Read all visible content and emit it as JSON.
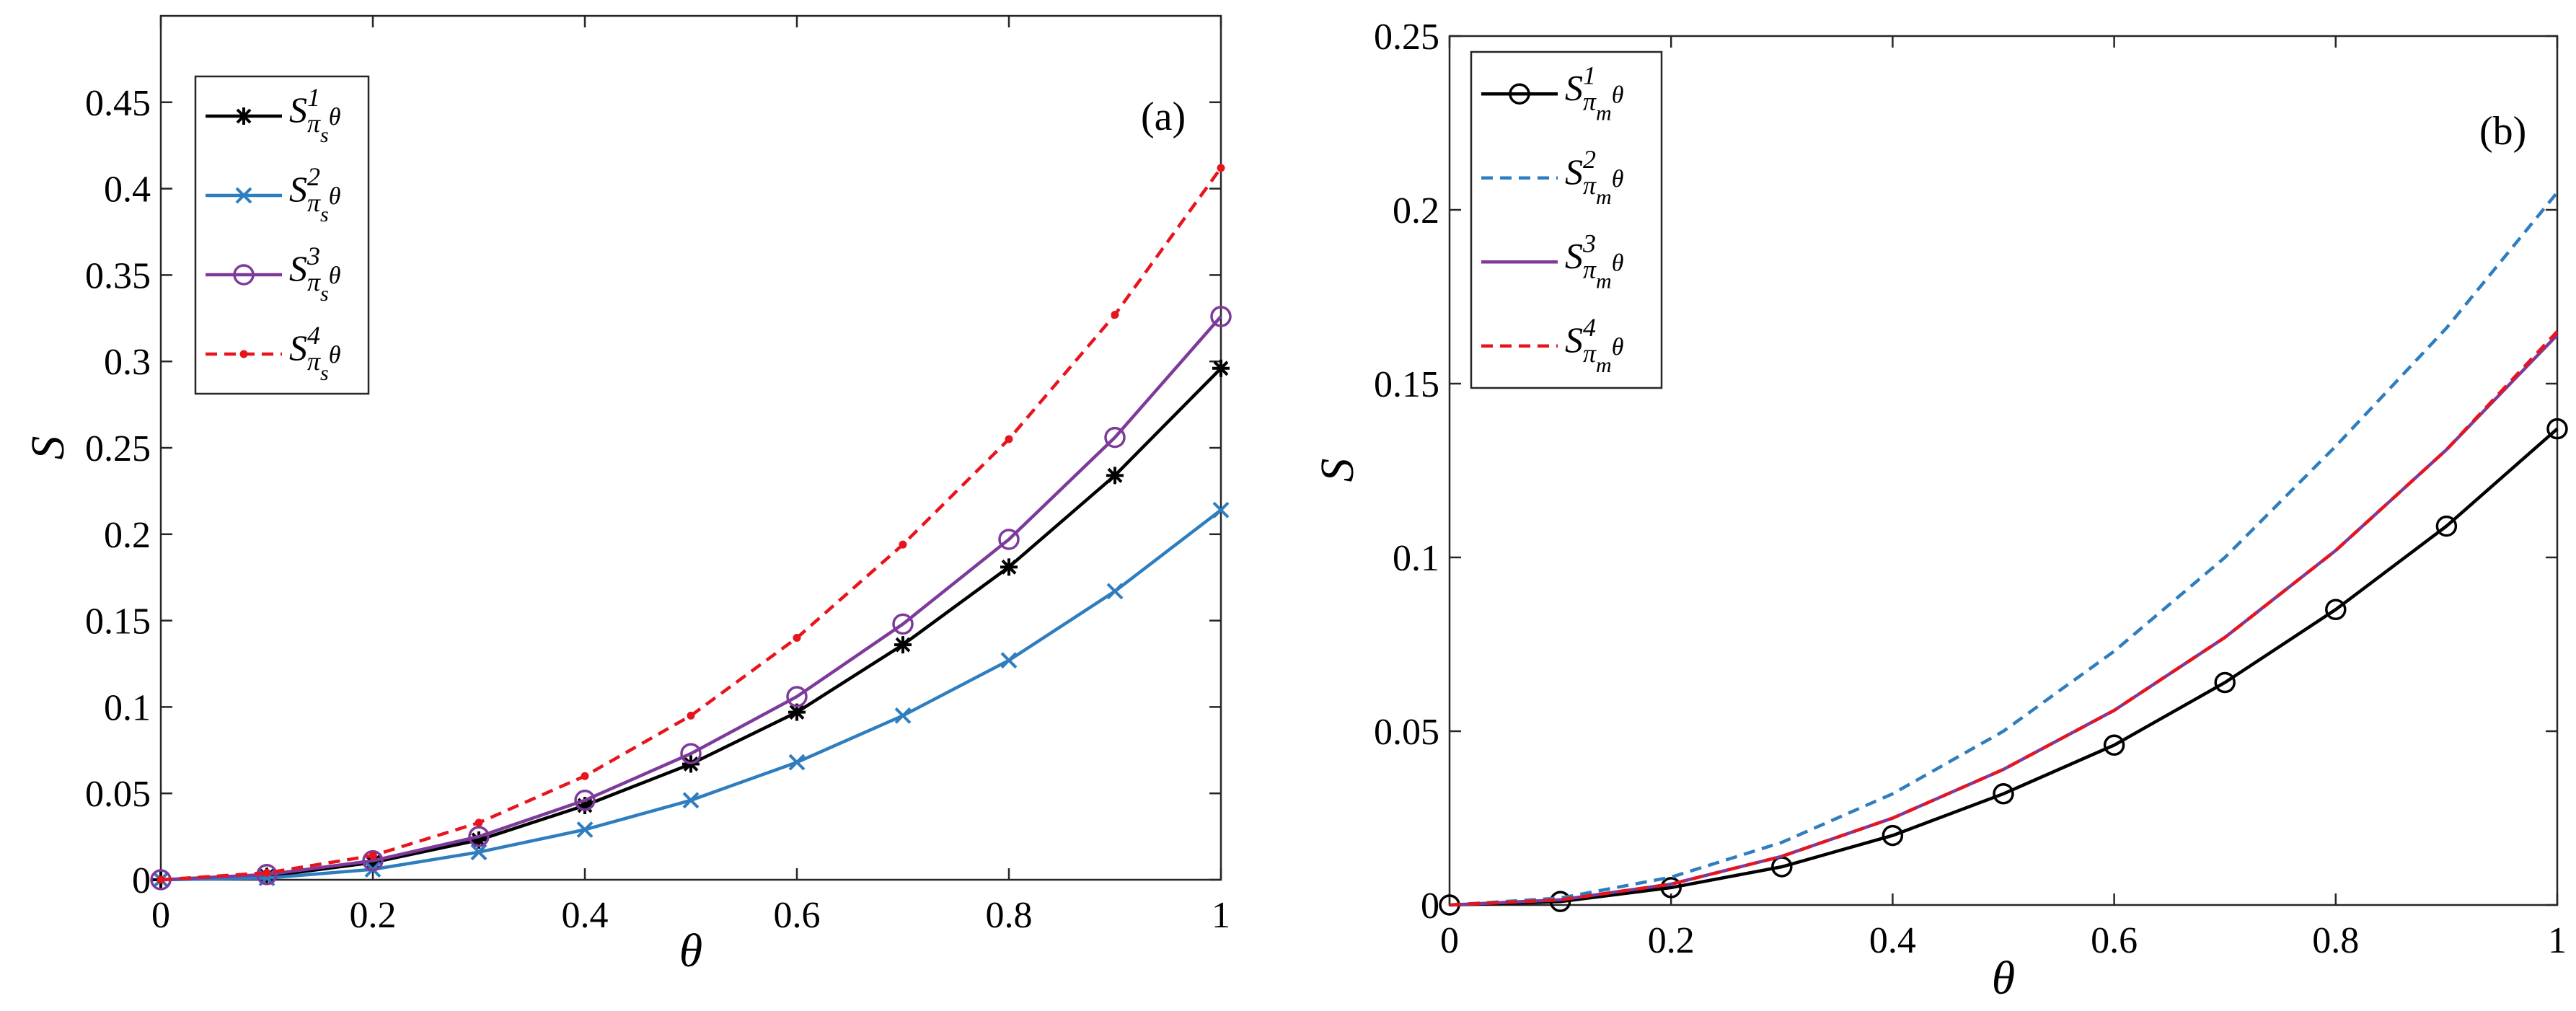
{
  "chart_data": [
    {
      "type": "line",
      "panel_label": "(a)",
      "xlabel": "θ",
      "ylabel": "S",
      "xlim": [
        0,
        1
      ],
      "ylim": [
        0,
        0.5
      ],
      "xticks": [
        0,
        0.2,
        0.4,
        0.6,
        0.8,
        1
      ],
      "xtick_labels": [
        "0",
        "0.2",
        "0.4",
        "0.6",
        "0.8",
        "1"
      ],
      "yticks": [
        0,
        0.05,
        0.1,
        0.15,
        0.2,
        0.25,
        0.3,
        0.35,
        0.4,
        0.45
      ],
      "ytick_labels": [
        "0",
        "0.05",
        "0.1",
        "0.15",
        "0.2",
        "0.25",
        "0.3",
        "0.35",
        "0.4",
        "0.45"
      ],
      "legend_position": "top-left",
      "grid": false,
      "x": [
        0,
        0.1,
        0.2,
        0.3,
        0.4,
        0.5,
        0.6,
        0.7,
        0.8,
        0.9,
        1
      ],
      "series": [
        {
          "name": "S1πsθ",
          "legend": {
            "main": "S",
            "sup": "1",
            "sub1": "π",
            "sub2": "s",
            "tail": "θ"
          },
          "color": "#000000",
          "dash": "solid",
          "marker": "asterisk",
          "values": [
            0,
            0.002,
            0.01,
            0.023,
            0.043,
            0.067,
            0.097,
            0.136,
            0.181,
            0.234,
            0.296
          ]
        },
        {
          "name": "S2πsθ",
          "legend": {
            "main": "S",
            "sup": "2",
            "sub1": "π",
            "sub2": "s",
            "tail": "θ"
          },
          "color": "#2e7dbf",
          "dash": "solid",
          "marker": "x",
          "values": [
            0,
            0.001,
            0.006,
            0.016,
            0.029,
            0.046,
            0.068,
            0.095,
            0.127,
            0.167,
            0.214
          ]
        },
        {
          "name": "S3πsθ",
          "legend": {
            "main": "S",
            "sup": "3",
            "sub1": "π",
            "sub2": "s",
            "tail": "θ"
          },
          "color": "#7e3a9a",
          "dash": "solid",
          "marker": "circle",
          "values": [
            0,
            0.003,
            0.011,
            0.025,
            0.046,
            0.073,
            0.106,
            0.148,
            0.197,
            0.256,
            0.326
          ]
        },
        {
          "name": "S4πsθ",
          "legend": {
            "main": "S",
            "sup": "4",
            "sub1": "π",
            "sub2": "s",
            "tail": "θ"
          },
          "color": "#e8141d",
          "dash": "dashed",
          "marker": "dot",
          "values": [
            0,
            0.004,
            0.014,
            0.033,
            0.06,
            0.095,
            0.14,
            0.194,
            0.255,
            0.327,
            0.412
          ]
        }
      ]
    },
    {
      "type": "line",
      "panel_label": "(b)",
      "xlabel": "θ",
      "ylabel": "S",
      "xlim": [
        0,
        1
      ],
      "ylim": [
        0,
        0.25
      ],
      "xticks": [
        0,
        0.2,
        0.4,
        0.6,
        0.8,
        1
      ],
      "xtick_labels": [
        "0",
        "0.2",
        "0.4",
        "0.6",
        "0.8",
        "1"
      ],
      "yticks": [
        0,
        0.05,
        0.1,
        0.15,
        0.2,
        0.25
      ],
      "ytick_labels": [
        "0",
        "0.05",
        "0.1",
        "0.15",
        "0.2",
        "0.25"
      ],
      "legend_position": "top-left",
      "grid": false,
      "x": [
        0,
        0.1,
        0.2,
        0.3,
        0.4,
        0.5,
        0.6,
        0.7,
        0.8,
        0.9,
        1
      ],
      "series": [
        {
          "name": "S1πmθ",
          "legend": {
            "main": "S",
            "sup": "1",
            "sub1": "π",
            "sub2": "m",
            "tail": "θ"
          },
          "color": "#000000",
          "dash": "solid",
          "marker": "circle",
          "values": [
            0,
            0.001,
            0.005,
            0.011,
            0.02,
            0.032,
            0.046,
            0.064,
            0.085,
            0.109,
            0.137
          ]
        },
        {
          "name": "S2πmθ",
          "legend": {
            "main": "S",
            "sup": "2",
            "sub1": "π",
            "sub2": "m",
            "tail": "θ"
          },
          "color": "#2e7dbf",
          "dash": "dashed",
          "marker": "none",
          "values": [
            0,
            0.002,
            0.008,
            0.018,
            0.032,
            0.05,
            0.073,
            0.1,
            0.132,
            0.166,
            0.205
          ]
        },
        {
          "name": "S3πmθ",
          "legend": {
            "main": "S",
            "sup": "3",
            "sub1": "π",
            "sub2": "m",
            "tail": "θ"
          },
          "color": "#7e3a9a",
          "dash": "solid",
          "marker": "none",
          "values": [
            0,
            0.0015,
            0.006,
            0.014,
            0.025,
            0.039,
            0.056,
            0.077,
            0.102,
            0.131,
            0.164
          ]
        },
        {
          "name": "S4πmθ",
          "legend": {
            "main": "S",
            "sup": "4",
            "sub1": "π",
            "sub2": "m",
            "tail": "θ"
          },
          "color": "#e8141d",
          "dash": "dashed",
          "marker": "none",
          "values": [
            0,
            0.0015,
            0.006,
            0.014,
            0.025,
            0.039,
            0.056,
            0.077,
            0.102,
            0.131,
            0.165
          ]
        }
      ]
    }
  ]
}
